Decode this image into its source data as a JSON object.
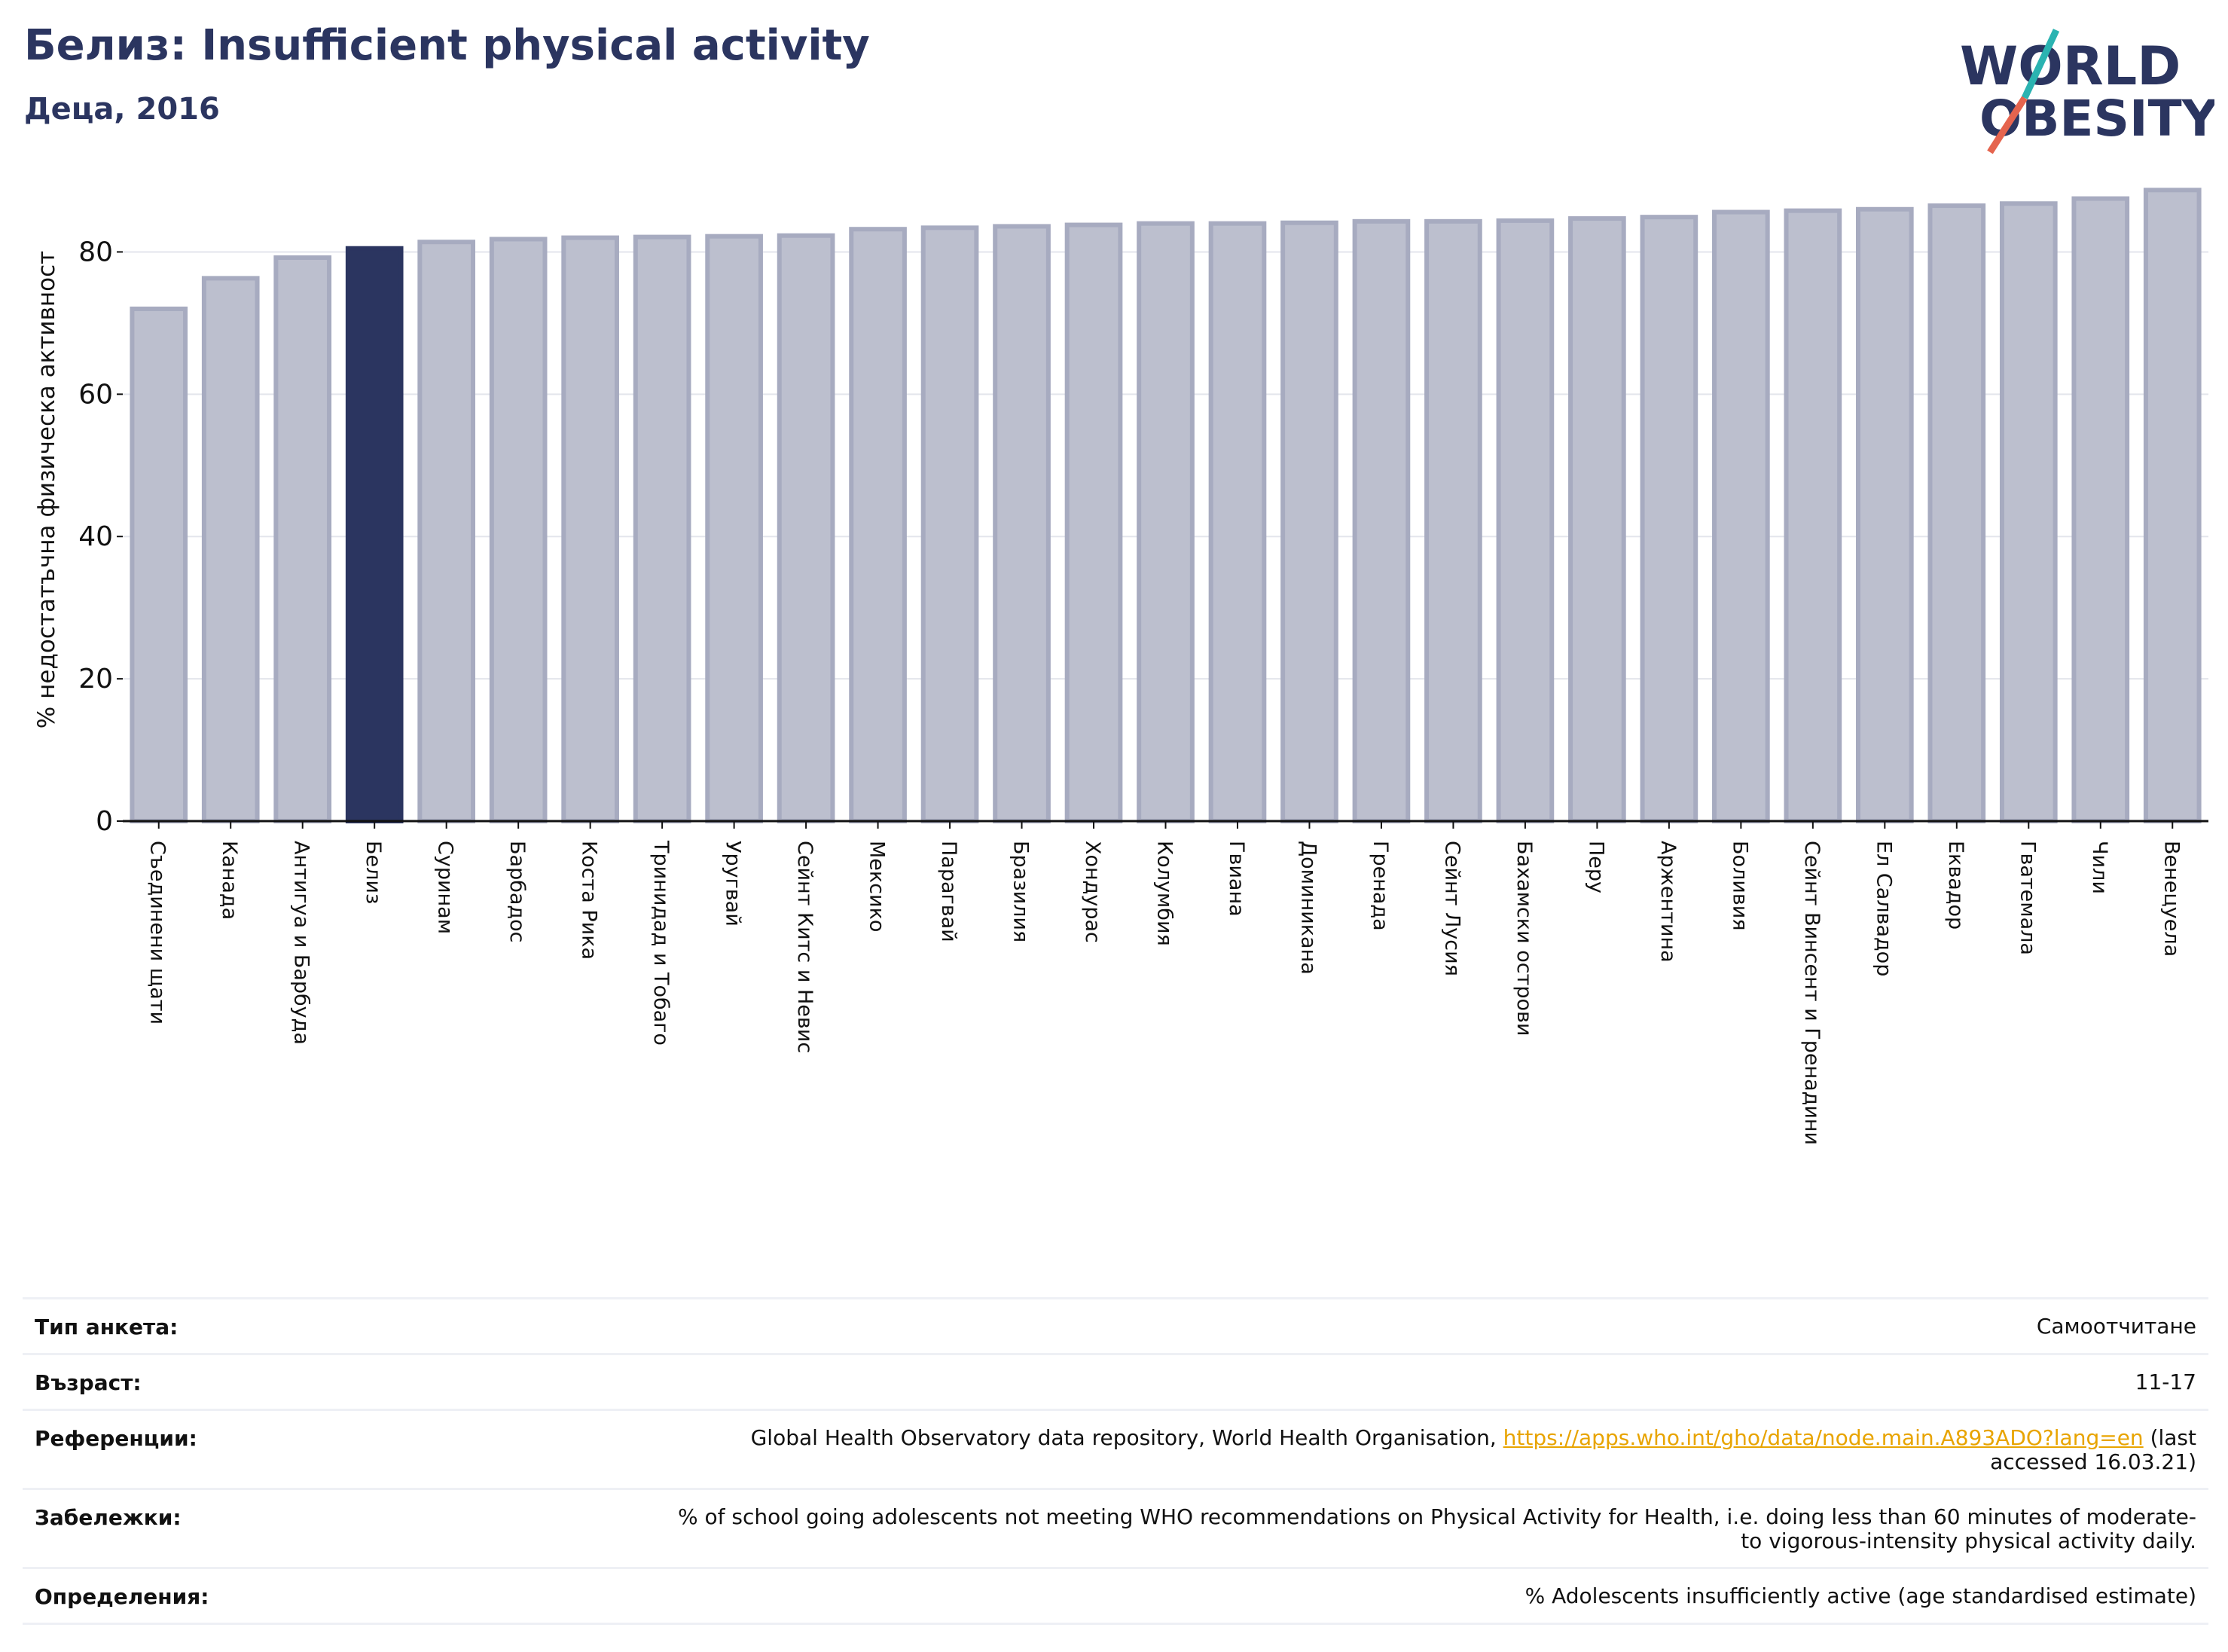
{
  "header": {
    "title": "Белиз: Insufficient physical activity",
    "subtitle": "Деца, 2016"
  },
  "logo": {
    "line1": "WORLD",
    "line2": "OBESITY"
  },
  "colors": {
    "title": "#2b3560",
    "highlight": "#2b3560",
    "bar_fill": "#bcbfce",
    "bar_stroke": "#a7abc0",
    "logo_teal": "#2bb3b1",
    "logo_orange": "#e5644e",
    "link": "#e8a400"
  },
  "chart_data": {
    "type": "bar",
    "ylabel": "% недостатъчна физическа активност",
    "ylim": [
      0,
      90
    ],
    "yticks": [
      0,
      20,
      40,
      60,
      80
    ],
    "grid": true,
    "highlight": "Белиз",
    "categories": [
      "Съединени щати",
      "Канада",
      "Антигуа и Барбуда",
      "Белиз",
      "Суринам",
      "Барбадос",
      "Коста Рика",
      "Тринидад и Тобаго",
      "Уругвай",
      "Сейнт Китс и Невис",
      "Мексико",
      "Парагвай",
      "Бразилия",
      "Хондурас",
      "Колумбия",
      "Гвиана",
      "Доминикана",
      "Гренада",
      "Сейнт Лусия",
      "Бахамски острови",
      "Перу",
      "Аржентина",
      "Боливия",
      "Сейнт Винсент и Гренадини",
      "Ел Салвадор",
      "Еквадор",
      "Гватемала",
      "Чили",
      "Венецуела"
    ],
    "values": [
      72.0,
      76.3,
      79.2,
      80.5,
      81.4,
      81.8,
      82.0,
      82.1,
      82.2,
      82.3,
      83.2,
      83.4,
      83.6,
      83.8,
      84.0,
      84.0,
      84.1,
      84.3,
      84.3,
      84.4,
      84.7,
      84.9,
      85.6,
      85.8,
      86.0,
      86.5,
      86.8,
      87.5,
      88.7
    ]
  },
  "meta": {
    "survey_type_label": "Тип анкета:",
    "survey_type_value": "Самоотчитане",
    "age_label": "Възраст:",
    "age_value": "11-17",
    "references_label": "Референции:",
    "references_text": "Global Health Observatory data repository, World Health Organisation, ",
    "references_link": "https://apps.who.int/gho/data/node.main.A893ADO?lang=en",
    "references_suffix": " (last accessed 16.03.21)",
    "notes_label": "Забележки:",
    "notes_value": "% of school going adolescents not meeting WHO recommendations on Physical Activity for Health, i.e. doing less than 60 minutes of moderate- to vigorous-intensity physical activity daily.",
    "definitions_label": "Определения:",
    "definitions_value": "% Adolescents insufficiently active (age standardised estimate)"
  }
}
